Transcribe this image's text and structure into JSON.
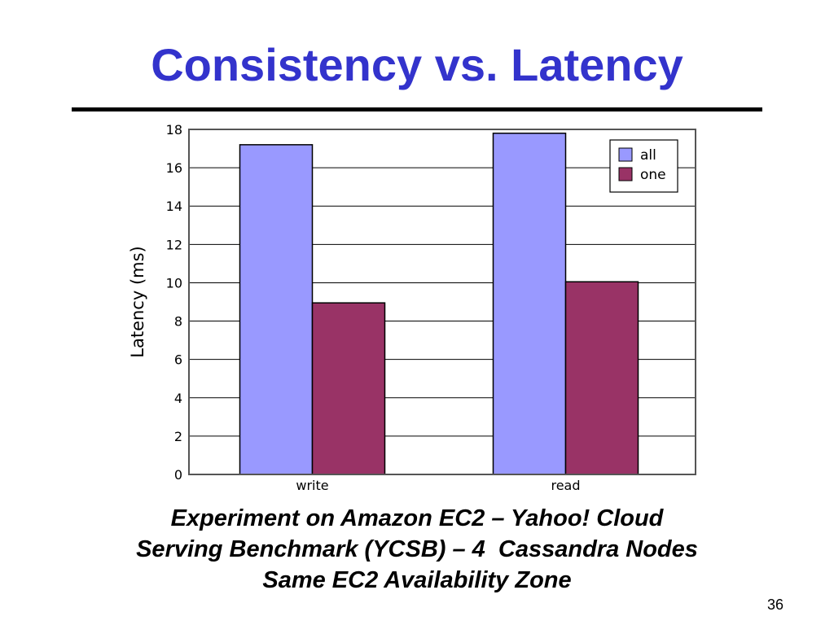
{
  "slide": {
    "title": "Consistency vs. Latency",
    "caption_lines": [
      "Experiment on Amazon EC2 – Yahoo! Cloud",
      "Serving Benchmark (YCSB) – 4  Cassandra Nodes",
      "Same EC2 Availability Zone"
    ],
    "page_number": "36"
  },
  "colors": {
    "title": "#3333cc",
    "all": "#9999ff",
    "one": "#993366"
  },
  "chart_data": {
    "type": "bar",
    "categories": [
      "write",
      "read"
    ],
    "series": [
      {
        "name": "all",
        "values": [
          17.2,
          17.8
        ]
      },
      {
        "name": "one",
        "values": [
          8.95,
          10.05
        ]
      }
    ],
    "title": "",
    "xlabel": "",
    "ylabel": "Latency (ms)",
    "ylim": [
      0,
      18
    ],
    "yticks": [
      0,
      2,
      4,
      6,
      8,
      10,
      12,
      14,
      16,
      18
    ],
    "grid": true,
    "legend": "top-right"
  }
}
